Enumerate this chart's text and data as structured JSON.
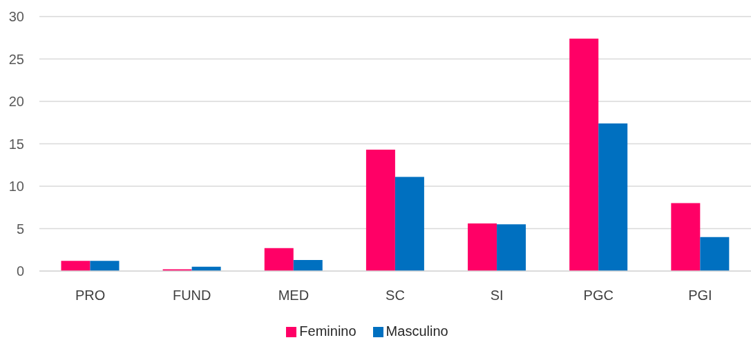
{
  "chart_data": {
    "type": "bar",
    "categories": [
      "PRO",
      "FUND",
      "MED",
      "SC",
      "SI",
      "PGC",
      "PGI"
    ],
    "series": [
      {
        "name": "Feminino",
        "color": "#ff0066",
        "values": [
          1.2,
          0.2,
          2.7,
          14.3,
          5.6,
          27.4,
          8.0
        ]
      },
      {
        "name": "Masculino",
        "color": "#0070c0",
        "values": [
          1.2,
          0.5,
          1.3,
          11.1,
          5.5,
          17.4,
          4.0
        ]
      }
    ],
    "ylim": [
      0,
      30
    ],
    "yticks": [
      0,
      5,
      10,
      15,
      20,
      25,
      30
    ],
    "grid": "y",
    "legend": "bottom"
  }
}
